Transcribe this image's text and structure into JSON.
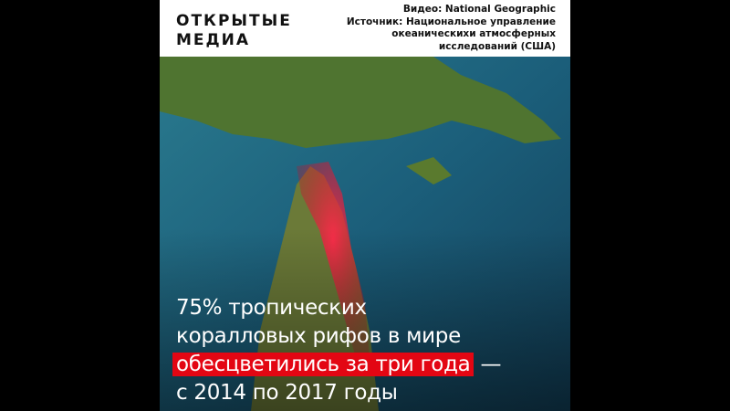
{
  "header": {
    "logo_line1": "ОТКРЫТЫЕ",
    "logo_line2": "МЕДИА",
    "credits": [
      "Видео: National Geographic",
      "Источник: Национальное управление",
      "океаническихи атмосферных",
      "исследований (США)"
    ]
  },
  "caption": {
    "line1": "75% тропических",
    "line2": "коралловых рифов в мире",
    "highlight": "обесцветились за три года",
    "dash": " —",
    "line4": "с 2014 по 2017 годы"
  },
  "colors": {
    "highlight": "#e30613",
    "ocean": "#1d5f7c",
    "land": "#5a7a2e",
    "bleaching": "#e0203a"
  }
}
